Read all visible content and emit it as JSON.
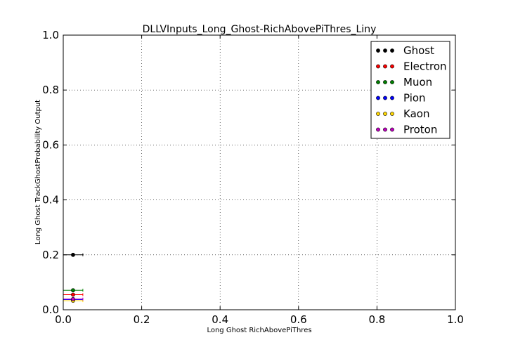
{
  "chart_data": {
    "type": "scatter",
    "title": "DLLVInputs_Long_Ghost-RichAbovePiThres_Liny",
    "xlabel": "Long Ghost RichAbovePiThres",
    "ylabel": "Long Ghost TrackGhostProbability Output",
    "xlim": [
      0.0,
      1.0
    ],
    "ylim": [
      0.0,
      1.0
    ],
    "xticks": [
      "0.0",
      "0.2",
      "0.4",
      "0.6",
      "0.8",
      "1.0"
    ],
    "yticks": [
      "0.0",
      "0.2",
      "0.4",
      "0.6",
      "0.8",
      "1.0"
    ],
    "grid": true,
    "legend_position": "top-right",
    "series": [
      {
        "name": "Ghost",
        "color": "#000000",
        "x": [
          0.025
        ],
        "y": [
          0.2
        ],
        "xerr": 0.025
      },
      {
        "name": "Electron",
        "color": "#ff0000",
        "x": [
          0.025
        ],
        "y": [
          0.055
        ],
        "xerr": 0.025
      },
      {
        "name": "Muon",
        "color": "#008000",
        "x": [
          0.025
        ],
        "y": [
          0.071
        ],
        "xerr": 0.025
      },
      {
        "name": "Pion",
        "color": "#0000ff",
        "x": [
          0.025
        ],
        "y": [
          0.037
        ],
        "xerr": 0.025
      },
      {
        "name": "Kaon",
        "color": "#ffd700",
        "x": [
          0.025
        ],
        "y": [
          0.033
        ],
        "xerr": 0.025
      },
      {
        "name": "Proton",
        "color": "#bf00bf",
        "x": [
          0.025
        ],
        "y": [
          0.039
        ],
        "xerr": 0.025
      }
    ]
  }
}
